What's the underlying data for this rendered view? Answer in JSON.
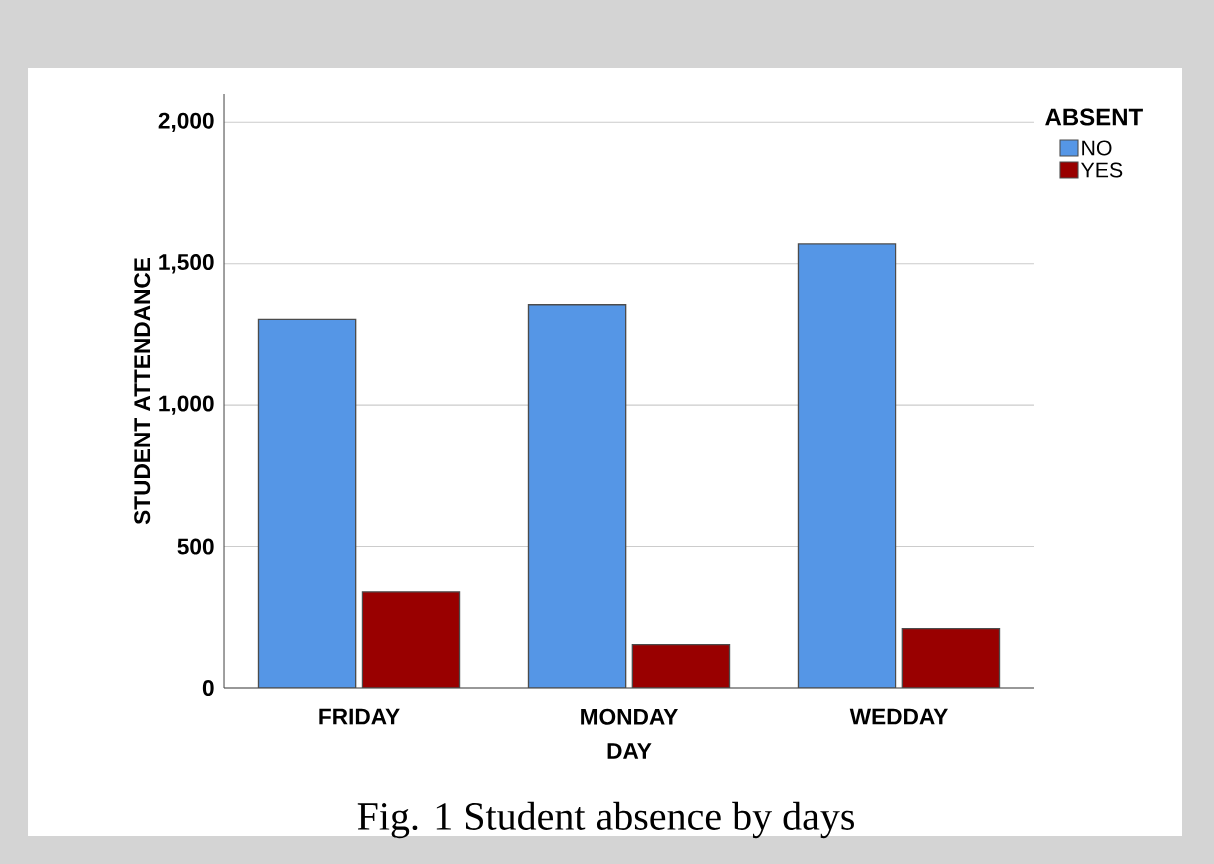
{
  "chart_data": {
    "type": "bar",
    "xlabel": "DAY",
    "ylabel": "STUDENT ATTENDANCE",
    "legend_title": "ABSENT",
    "categories": [
      "FRIDAY",
      "MONDAY",
      "WEDDAY"
    ],
    "series": [
      {
        "name": "NO",
        "color": "#5596e6",
        "values": [
          1303,
          1355,
          1570
        ]
      },
      {
        "name": "YES",
        "color": "#990000",
        "values": [
          340,
          153,
          210
        ]
      }
    ],
    "ylim": [
      0,
      2100
    ],
    "yticks": [
      {
        "value": 0,
        "label": "0"
      },
      {
        "value": 500,
        "label": "500"
      },
      {
        "value": 1000,
        "label": "1,000"
      },
      {
        "value": 1500,
        "label": "1,500"
      },
      {
        "value": 2000,
        "label": "2,000"
      }
    ],
    "grid": "y",
    "legend": "top right",
    "annotations": [
      "Fig. 1 Student absence by days"
    ]
  }
}
